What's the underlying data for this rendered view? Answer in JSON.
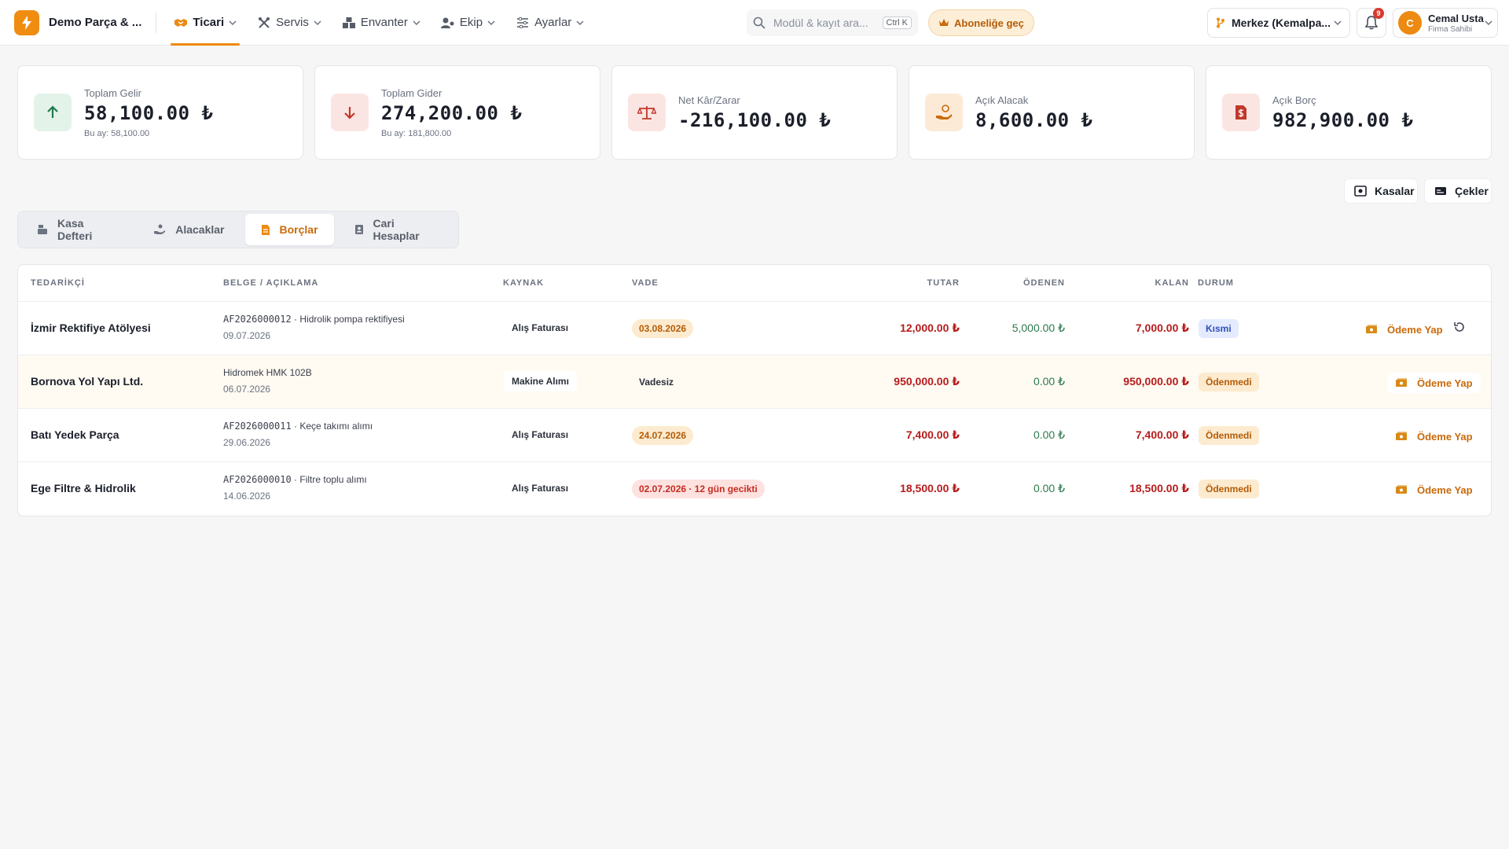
{
  "app": {
    "brand": "Demo Parça & ...",
    "colors": {
      "accent": "#ec8a12",
      "danger": "#b71c1c",
      "success": "#2d7a4f"
    }
  },
  "nav": [
    {
      "label": "Ticari",
      "icon": "handshake-icon",
      "active": true
    },
    {
      "label": "Servis",
      "icon": "tools-icon"
    },
    {
      "label": "Envanter",
      "icon": "boxes-icon"
    },
    {
      "label": "Ekip",
      "icon": "users-icon"
    },
    {
      "label": "Ayarlar",
      "icon": "sliders-icon"
    }
  ],
  "search": {
    "placeholder": "Modül & kayıt ara...",
    "shortcut": "Ctrl K"
  },
  "subscribe": {
    "label": "Aboneliğe geç"
  },
  "branch": {
    "label": "Merkez (Kemalpa..."
  },
  "notifications": {
    "count": "9"
  },
  "user": {
    "initial": "C",
    "name": "Cemal Usta",
    "role": "Firma Sahibi"
  },
  "stats": [
    {
      "label": "Toplam Gelir",
      "value": "58,100.00 ₺",
      "sub": "Bu ay: 58,100.00",
      "icon": "arrow-up-icon"
    },
    {
      "label": "Toplam Gider",
      "value": "274,200.00 ₺",
      "sub": "Bu ay: 181,800.00",
      "icon": "arrow-down-icon"
    },
    {
      "label": "Net Kâr/Zarar",
      "value": "-216,100.00 ₺",
      "icon": "scale-icon"
    },
    {
      "label": "Açık Alacak",
      "value": "8,600.00 ₺",
      "icon": "hand-coin-icon"
    },
    {
      "label": "Açık Borç",
      "value": "982,900.00 ₺",
      "icon": "invoice-dollar-icon"
    }
  ],
  "actions": {
    "kasalar": "Kasalar",
    "cekler": "Çekler"
  },
  "tabs": [
    {
      "label": "Kasa Defteri",
      "icon": "cash-register-icon"
    },
    {
      "label": "Alacaklar",
      "icon": "hand-holding-icon"
    },
    {
      "label": "Borçlar",
      "icon": "receipt-icon",
      "active": true
    },
    {
      "label": "Cari Hesaplar",
      "icon": "address-book-icon"
    }
  ],
  "table": {
    "headers": [
      "TEDARİKÇİ",
      "BELGE / AÇIKLAMA",
      "KAYNAK",
      "VADE",
      "TUTAR",
      "ÖDENEN",
      "KALAN",
      "DURUM"
    ],
    "pay_label": "Ödeme Yap",
    "rows": [
      {
        "supplier": "İzmir Rektifiye Atölyesi",
        "doc_no": "AF2026000012",
        "doc_desc": " · Hidrolik pompa rektifiyesi",
        "date": "09.07.2026",
        "source": "Alış Faturası",
        "due": "03.08.2026",
        "tutar": "12,000.00 ₺",
        "odenen": "5,000.00 ₺",
        "kalan": "7,000.00 ₺",
        "status": "Kısmi"
      },
      {
        "supplier": "Bornova Yol Yapı Ltd.",
        "doc_no": "",
        "doc_desc": "Hidromek HMK 102B",
        "date": "06.07.2026",
        "source": "Makine Alımı",
        "due": "Vadesiz",
        "tutar": "950,000.00 ₺",
        "odenen": "0.00 ₺",
        "kalan": "950,000.00 ₺",
        "status": "Ödenmedi"
      },
      {
        "supplier": "Batı Yedek Parça",
        "doc_no": "AF2026000011",
        "doc_desc": " · Keçe takımı alımı",
        "date": "29.06.2026",
        "source": "Alış Faturası",
        "due": "24.07.2026",
        "tutar": "7,400.00 ₺",
        "odenen": "0.00 ₺",
        "kalan": "7,400.00 ₺",
        "status": "Ödenmedi"
      },
      {
        "supplier": "Ege Filtre & Hidrolik",
        "doc_no": "AF2026000010",
        "doc_desc": " · Filtre toplu alımı",
        "date": "14.06.2026",
        "source": "Alış Faturası",
        "due": "02.07.2026 · 12 gün gecikti",
        "tutar": "18,500.00 ₺",
        "odenen": "0.00 ₺",
        "kalan": "18,500.00 ₺",
        "status": "Ödenmedi"
      }
    ]
  }
}
